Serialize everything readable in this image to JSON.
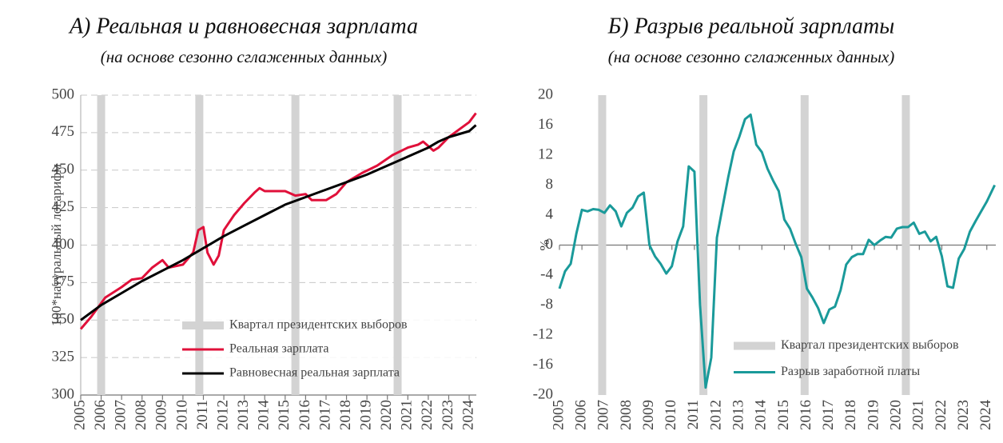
{
  "chart_data": [
    {
      "type": "line",
      "title": "А) Реальная и равновесная зарплата",
      "subtitle": "(на основе сезонно сглаженных данных)",
      "y_label": "100*натуральный логарифм",
      "xlim": [
        2005,
        2024.35
      ],
      "ylim": [
        300,
        500
      ],
      "xticks": [
        2005,
        2006,
        2007,
        2008,
        2009,
        2010,
        2011,
        2012,
        2013,
        2014,
        2015,
        2016,
        2017,
        2018,
        2019,
        2020,
        2021,
        2022,
        2023,
        2024
      ],
      "yticks": [
        300,
        325,
        350,
        375,
        400,
        425,
        450,
        475,
        500
      ],
      "grid": true,
      "legend": "lower right",
      "election": {
        "name": "Квартал президентских выборов",
        "color": "#d3d3d3",
        "x": [
          2006.0,
          2010.8,
          2015.5,
          2020.5
        ]
      },
      "series": [
        {
          "name": "Реальная зарплата",
          "color": "#e0103a",
          "x": [
            2005.0,
            2005.5,
            2006.2,
            2007.0,
            2007.5,
            2008.0,
            2008.5,
            2009.0,
            2009.3,
            2010.0,
            2010.5,
            2010.75,
            2011.0,
            2011.2,
            2011.5,
            2011.75,
            2012.0,
            2012.5,
            2013.0,
            2013.5,
            2013.75,
            2014.0,
            2015.0,
            2015.5,
            2016.0,
            2016.3,
            2017.0,
            2017.5,
            2018.0,
            2018.75,
            2019.5,
            2020.25,
            2021.0,
            2021.5,
            2021.75,
            2022.25,
            2022.5,
            2023.0,
            2023.5,
            2024.0,
            2024.33
          ],
          "values": [
            344,
            352,
            365,
            372,
            377,
            378,
            385,
            390,
            385,
            387,
            395,
            410,
            412,
            395,
            387,
            393,
            410,
            420,
            428,
            435,
            438,
            436,
            436,
            433,
            434,
            430,
            430,
            434,
            442,
            448,
            453,
            460,
            465,
            467,
            469,
            463,
            465,
            472,
            477,
            482,
            488
          ]
        },
        {
          "name": "Равновесная реальная зарплата",
          "color": "#000000",
          "x": [
            2005,
            2006,
            2007,
            2008,
            2009,
            2010,
            2011,
            2012,
            2013,
            2014,
            2015,
            2016,
            2017,
            2018,
            2019,
            2020,
            2021,
            2022,
            2022.5,
            2023,
            2024,
            2024.33
          ],
          "values": [
            350,
            360,
            368,
            376,
            383,
            390,
            398,
            406,
            413,
            420,
            427,
            432,
            437,
            442,
            447,
            453,
            459,
            465,
            469,
            472,
            476,
            480
          ]
        }
      ]
    },
    {
      "type": "line",
      "title": "Б) Разрыв реальной зарплаты",
      "subtitle": "(на основе сезонно сглаженных данных)",
      "y_label": "%",
      "xlim": [
        2005,
        2024.4
      ],
      "ylim": [
        -20,
        20
      ],
      "xticks": [
        2005,
        2006,
        2007,
        2008,
        2009,
        2010,
        2011,
        2012,
        2013,
        2014,
        2015,
        2016,
        2017,
        2018,
        2019,
        2020,
        2021,
        2022,
        2023,
        2024
      ],
      "yticks": [
        -20,
        -16,
        -12,
        -8,
        -4,
        0,
        4,
        8,
        12,
        16,
        20
      ],
      "grid": false,
      "legend": "lower right",
      "election": {
        "name": "Квартал президентских выборов",
        "color": "#d3d3d3",
        "x": [
          2006.9,
          2011.4,
          2015.9,
          2020.4
        ]
      },
      "series": [
        {
          "name": "Разрыв заработной платы",
          "color": "#1a9a9a",
          "x": [
            2005.0,
            2005.25,
            2005.5,
            2005.75,
            2006.0,
            2006.25,
            2006.5,
            2006.75,
            2007.0,
            2007.25,
            2007.5,
            2007.75,
            2008.0,
            2008.25,
            2008.5,
            2008.75,
            2009.0,
            2009.25,
            2009.5,
            2009.75,
            2010.0,
            2010.25,
            2010.5,
            2010.75,
            2011.0,
            2011.25,
            2011.5,
            2011.75,
            2012.0,
            2012.25,
            2012.5,
            2012.75,
            2013.0,
            2013.25,
            2013.5,
            2013.75,
            2014.0,
            2014.25,
            2014.5,
            2014.75,
            2015.0,
            2015.25,
            2015.5,
            2015.75,
            2016.0,
            2016.25,
            2016.5,
            2016.75,
            2017.0,
            2017.25,
            2017.5,
            2017.75,
            2018.0,
            2018.25,
            2018.5,
            2018.75,
            2019.0,
            2019.25,
            2019.5,
            2019.75,
            2020.0,
            2020.25,
            2020.5,
            2020.75,
            2021.0,
            2021.25,
            2021.5,
            2021.75,
            2022.0,
            2022.25,
            2022.5,
            2022.75,
            2023.0,
            2023.25,
            2023.5,
            2023.75,
            2024.0,
            2024.35
          ],
          "values": [
            -5.8,
            -3.5,
            -2.5,
            1.5,
            4.7,
            4.5,
            4.8,
            4.7,
            4.3,
            5.3,
            4.5,
            2.5,
            4.3,
            5.0,
            6.5,
            7.0,
            0,
            -1.5,
            -2.5,
            -3.8,
            -2.8,
            0.5,
            2.5,
            10.5,
            9.8,
            -8,
            -19,
            -15,
            1,
            5,
            9,
            12.5,
            14.5,
            16.8,
            17.4,
            13.4,
            12.4,
            10.2,
            8.6,
            7.2,
            3.4,
            2.2,
            0.2,
            -1.6,
            -5.8,
            -7,
            -8.4,
            -10.4,
            -8.6,
            -8.2,
            -6,
            -2.6,
            -1.6,
            -1.2,
            -1.2,
            0.7,
            0,
            0.6,
            1.1,
            1,
            2.2,
            2.4,
            2.4,
            3,
            1.5,
            1.8,
            0.5,
            1.1,
            -1.5,
            -5.5,
            -5.7,
            -1.8,
            -0.5,
            1.8,
            3.2,
            4.5,
            5.8,
            8.0
          ]
        }
      ]
    }
  ]
}
